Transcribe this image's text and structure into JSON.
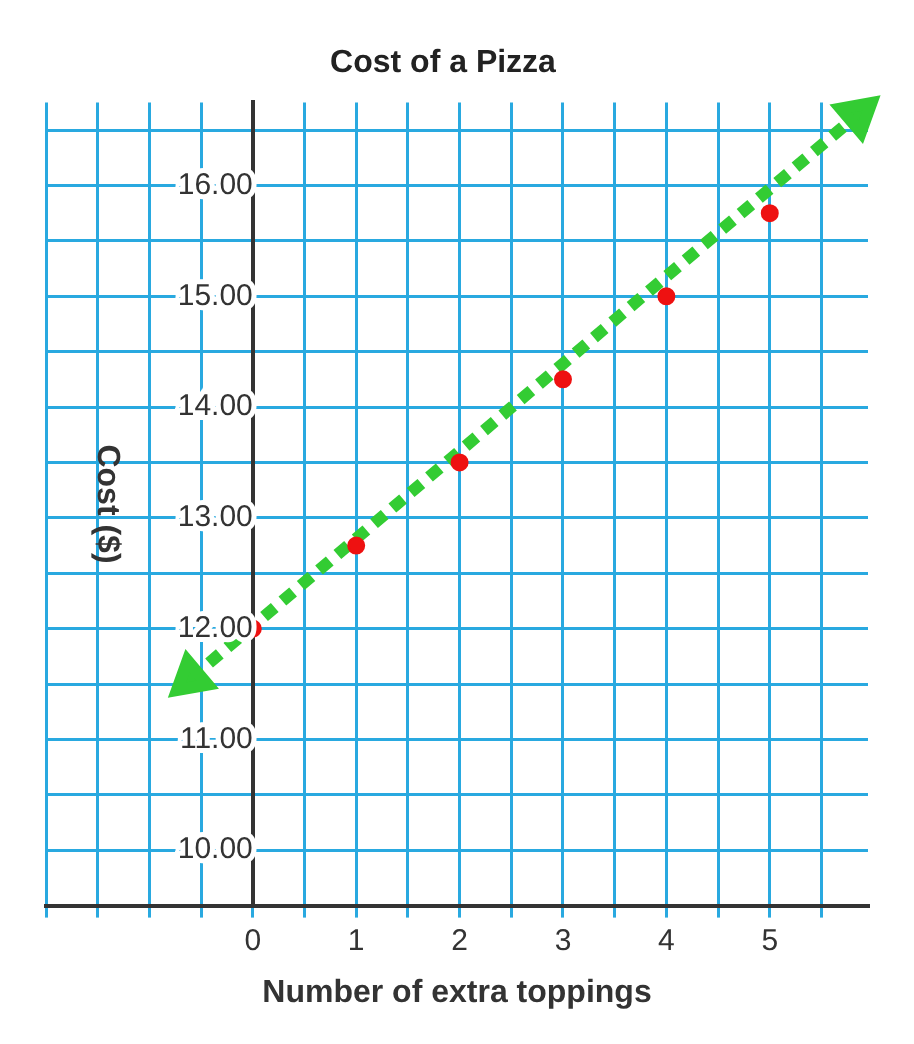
{
  "chart_data": {
    "type": "scatter",
    "title": "Cost of a Pizza",
    "xlabel": "Number of extra toppings",
    "ylabel": "Cost ($)",
    "xlim": [
      -2,
      5.95
    ],
    "ylim": [
      9.5,
      16.75
    ],
    "xticks": [
      {
        "value": -2,
        "label": null
      },
      {
        "value": -1.5,
        "label": null
      },
      {
        "value": -1,
        "label": null
      },
      {
        "value": -0.5,
        "label": null
      },
      0,
      {
        "value": 0.5,
        "label": null
      },
      1,
      {
        "value": 1.5,
        "label": null
      },
      2,
      {
        "value": 2.5,
        "label": null
      },
      3,
      {
        "value": 3.5,
        "label": null
      },
      4,
      {
        "value": 4.5,
        "label": null
      },
      5,
      {
        "value": 5.5,
        "label": null
      }
    ],
    "yticks": [
      {
        "value": 9.5,
        "label": null
      },
      {
        "value": 10,
        "label": "10.00"
      },
      {
        "value": 10.5,
        "label": null
      },
      {
        "value": 11,
        "label": "11.00"
      },
      {
        "value": 11.5,
        "label": null
      },
      {
        "value": 12,
        "label": "12.00"
      },
      {
        "value": 12.5,
        "label": null
      },
      {
        "value": 13,
        "label": "13.00"
      },
      {
        "value": 13.5,
        "label": null
      },
      {
        "value": 14,
        "label": "14.00"
      },
      {
        "value": 14.5,
        "label": null
      },
      {
        "value": 15,
        "label": "15.00"
      },
      {
        "value": 15.5,
        "label": null
      },
      {
        "value": 16,
        "label": "16.00"
      },
      {
        "value": 16.5,
        "label": null
      }
    ],
    "grid": true,
    "legend": false,
    "series": [
      {
        "type": "line",
        "color": "#33cc33",
        "line_style": "dashed",
        "marker": "triangle",
        "x": [
          -0.6,
          5.85
        ],
        "values": [
          11.55,
          16.64
        ]
      },
      {
        "type": "scatter",
        "color": "#ee1111",
        "marker": "circle",
        "x": [
          0,
          1,
          2,
          3,
          4,
          5
        ],
        "values": [
          12,
          12.75,
          13.5,
          14.25,
          15,
          15.75
        ]
      }
    ]
  }
}
